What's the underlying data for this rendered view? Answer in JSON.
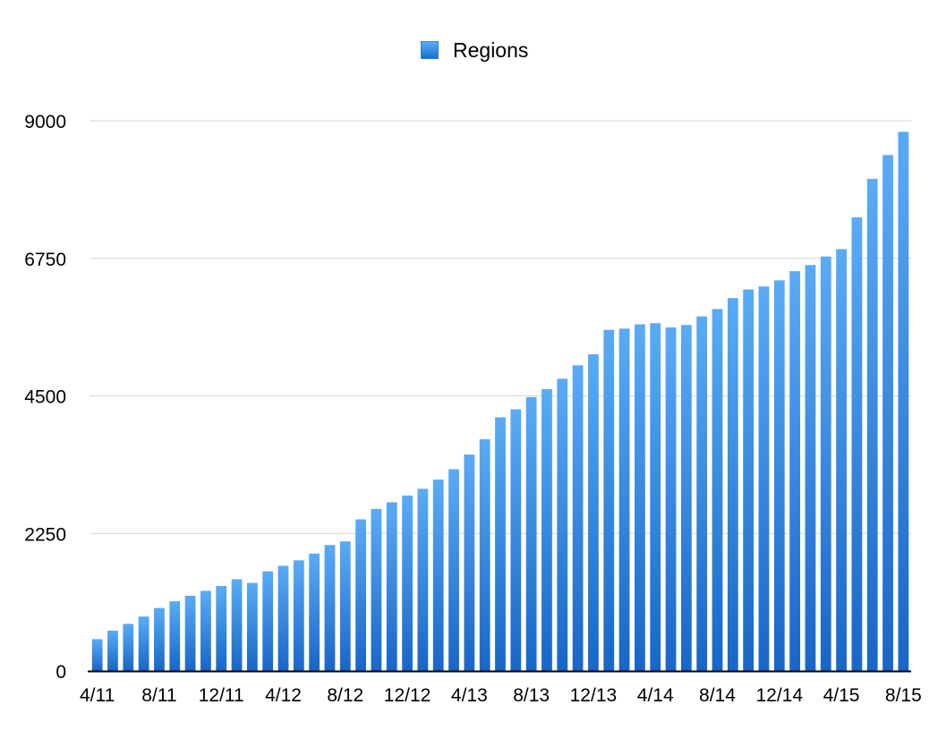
{
  "legend": {
    "label": "Regions"
  },
  "colors": {
    "bar_top": "#5aabf6",
    "bar_bottom": "#1766c8",
    "grid": "#d6d6d6",
    "axis": "#000000"
  },
  "chart_data": {
    "type": "bar",
    "title": "",
    "xlabel": "",
    "ylabel": "",
    "ylim": [
      0,
      9000
    ],
    "yticks": [
      "0",
      "2250",
      "4500",
      "6750",
      "9000"
    ],
    "xtick_labels": [
      "4/11",
      "8/11",
      "12/11",
      "4/12",
      "8/12",
      "12/12",
      "4/13",
      "8/13",
      "12/13",
      "4/14",
      "8/14",
      "12/14",
      "4/15",
      "8/15"
    ],
    "grid": true,
    "legend_position": "top-center",
    "categories": [
      "4/11",
      "5/11",
      "6/11",
      "7/11",
      "8/11",
      "9/11",
      "10/11",
      "11/11",
      "12/11",
      "1/12",
      "2/12",
      "3/12",
      "4/12",
      "5/12",
      "6/12",
      "7/12",
      "8/12",
      "9/12",
      "10/12",
      "11/12",
      "12/12",
      "1/13",
      "2/13",
      "3/13",
      "4/13",
      "5/13",
      "6/13",
      "7/13",
      "8/13",
      "9/13",
      "10/13",
      "11/13",
      "12/13",
      "1/14",
      "2/14",
      "3/14",
      "4/14",
      "5/14",
      "6/14",
      "7/14",
      "8/14",
      "9/14",
      "10/14",
      "11/14",
      "12/14",
      "1/15",
      "2/15",
      "3/15",
      "4/15",
      "5/15",
      "6/15",
      "7/15",
      "8/15"
    ],
    "series": [
      {
        "name": "Regions",
        "values": [
          520,
          660,
          770,
          890,
          1030,
          1140,
          1230,
          1310,
          1390,
          1500,
          1440,
          1630,
          1720,
          1810,
          1920,
          2060,
          2120,
          2480,
          2650,
          2760,
          2870,
          2980,
          3130,
          3300,
          3540,
          3790,
          4150,
          4280,
          4480,
          4610,
          4780,
          5000,
          5180,
          5580,
          5600,
          5670,
          5690,
          5620,
          5660,
          5800,
          5920,
          6100,
          6240,
          6290,
          6390,
          6540,
          6640,
          6780,
          6900,
          7420,
          8050,
          8440,
          8820
        ]
      }
    ]
  }
}
